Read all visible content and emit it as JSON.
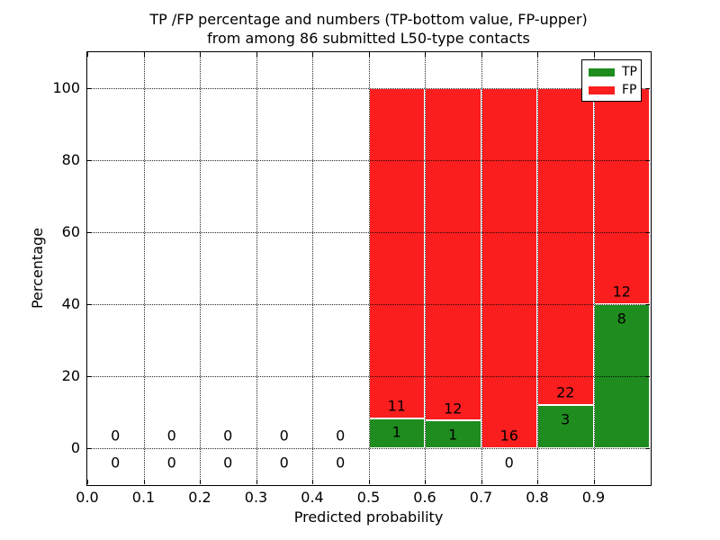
{
  "chart_data": {
    "type": "bar",
    "stacked": true,
    "title_line1": "TP /FP percentage and numbers (TP-bottom value, FP-upper)",
    "title_line2": "from among 86 submitted L50-type contacts",
    "xlabel": "Predicted probability",
    "ylabel": "Percentage",
    "xlim": [
      0.0,
      1.0
    ],
    "ylim": [
      -10,
      110
    ],
    "bin_width": 0.1,
    "grid": true,
    "xticks": [
      0.0,
      0.1,
      0.2,
      0.3,
      0.4,
      0.5,
      0.6,
      0.7,
      0.8,
      0.9
    ],
    "xtick_labels": [
      "0.0",
      "0.1",
      "0.2",
      "0.3",
      "0.4",
      "0.5",
      "0.6",
      "0.7",
      "0.8",
      "0.9"
    ],
    "yticks": [
      0,
      20,
      40,
      60,
      80,
      100
    ],
    "ytick_labels": [
      "0",
      "20",
      "40",
      "60",
      "80",
      "100"
    ],
    "series": [
      {
        "name": "TP",
        "color": "#1e8c1e"
      },
      {
        "name": "FP",
        "color": "#fb1e1e"
      }
    ],
    "bins": [
      {
        "x0": 0.0,
        "tp_count": 0,
        "fp_count": 0,
        "tp_pct": 0,
        "fp_pct": 0
      },
      {
        "x0": 0.1,
        "tp_count": 0,
        "fp_count": 0,
        "tp_pct": 0,
        "fp_pct": 0
      },
      {
        "x0": 0.2,
        "tp_count": 0,
        "fp_count": 0,
        "tp_pct": 0,
        "fp_pct": 0
      },
      {
        "x0": 0.3,
        "tp_count": 0,
        "fp_count": 0,
        "tp_pct": 0,
        "fp_pct": 0
      },
      {
        "x0": 0.4,
        "tp_count": 0,
        "fp_count": 0,
        "tp_pct": 0,
        "fp_pct": 0
      },
      {
        "x0": 0.5,
        "tp_count": 1,
        "fp_count": 11,
        "tp_pct": 8.33,
        "fp_pct": 91.67
      },
      {
        "x0": 0.6,
        "tp_count": 1,
        "fp_count": 12,
        "tp_pct": 7.69,
        "fp_pct": 92.31
      },
      {
        "x0": 0.7,
        "tp_count": 0,
        "fp_count": 16,
        "tp_pct": 0,
        "fp_pct": 100
      },
      {
        "x0": 0.8,
        "tp_count": 3,
        "fp_count": 22,
        "tp_pct": 12,
        "fp_pct": 88
      },
      {
        "x0": 0.9,
        "tp_count": 8,
        "fp_count": 12,
        "tp_pct": 40,
        "fp_pct": 60
      }
    ],
    "legend": {
      "position": "upper right",
      "entries": [
        {
          "label": "TP",
          "color": "#1e8c1e"
        },
        {
          "label": "FP",
          "color": "#fb1e1e"
        }
      ]
    }
  }
}
